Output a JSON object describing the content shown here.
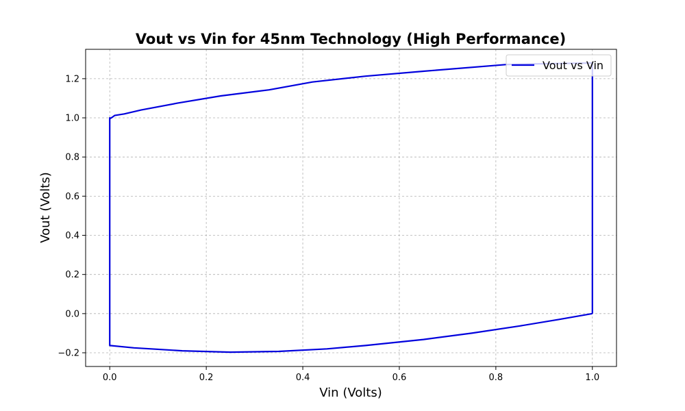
{
  "chart_data": {
    "type": "line",
    "title": "Vout vs Vin for 45nm Technology (High Performance)",
    "xlabel": "Vin (Volts)",
    "ylabel": "Vout (Volts)",
    "xlim": [
      -0.05,
      1.05
    ],
    "ylim": [
      -0.27,
      1.35
    ],
    "xticks": [
      0.0,
      0.2,
      0.4,
      0.6,
      0.8,
      1.0
    ],
    "xtick_labels": [
      "0.0",
      "0.2",
      "0.4",
      "0.6",
      "0.8",
      "1.0"
    ],
    "yticks": [
      -0.2,
      0.0,
      0.2,
      0.4,
      0.6,
      0.8,
      1.0,
      1.2
    ],
    "ytick_labels": [
      "−0.2",
      "0.0",
      "0.2",
      "0.4",
      "0.6",
      "0.8",
      "1.0",
      "1.2"
    ],
    "grid": true,
    "legend_position": "top-right",
    "series": [
      {
        "name": "Vout vs Vin",
        "color": "#0000dd",
        "x": [
          1.0,
          0.93,
          0.85,
          0.75,
          0.65,
          0.53,
          0.45,
          0.35,
          0.25,
          0.15,
          0.05,
          0.0,
          0.0,
          0.0,
          0.002,
          0.005,
          0.01,
          0.03,
          0.065,
          0.14,
          0.23,
          0.33,
          0.42,
          0.53,
          0.65,
          0.82,
          0.87,
          1.0,
          1.0
        ],
        "y": [
          0.0,
          -0.03,
          -0.063,
          -0.1,
          -0.132,
          -0.163,
          -0.18,
          -0.193,
          -0.197,
          -0.19,
          -0.175,
          -0.163,
          0.5,
          1.0,
          0.998,
          1.003,
          1.012,
          1.02,
          1.04,
          1.075,
          1.112,
          1.143,
          1.183,
          1.213,
          1.238,
          1.272,
          1.275,
          1.28,
          0.0
        ]
      }
    ]
  }
}
